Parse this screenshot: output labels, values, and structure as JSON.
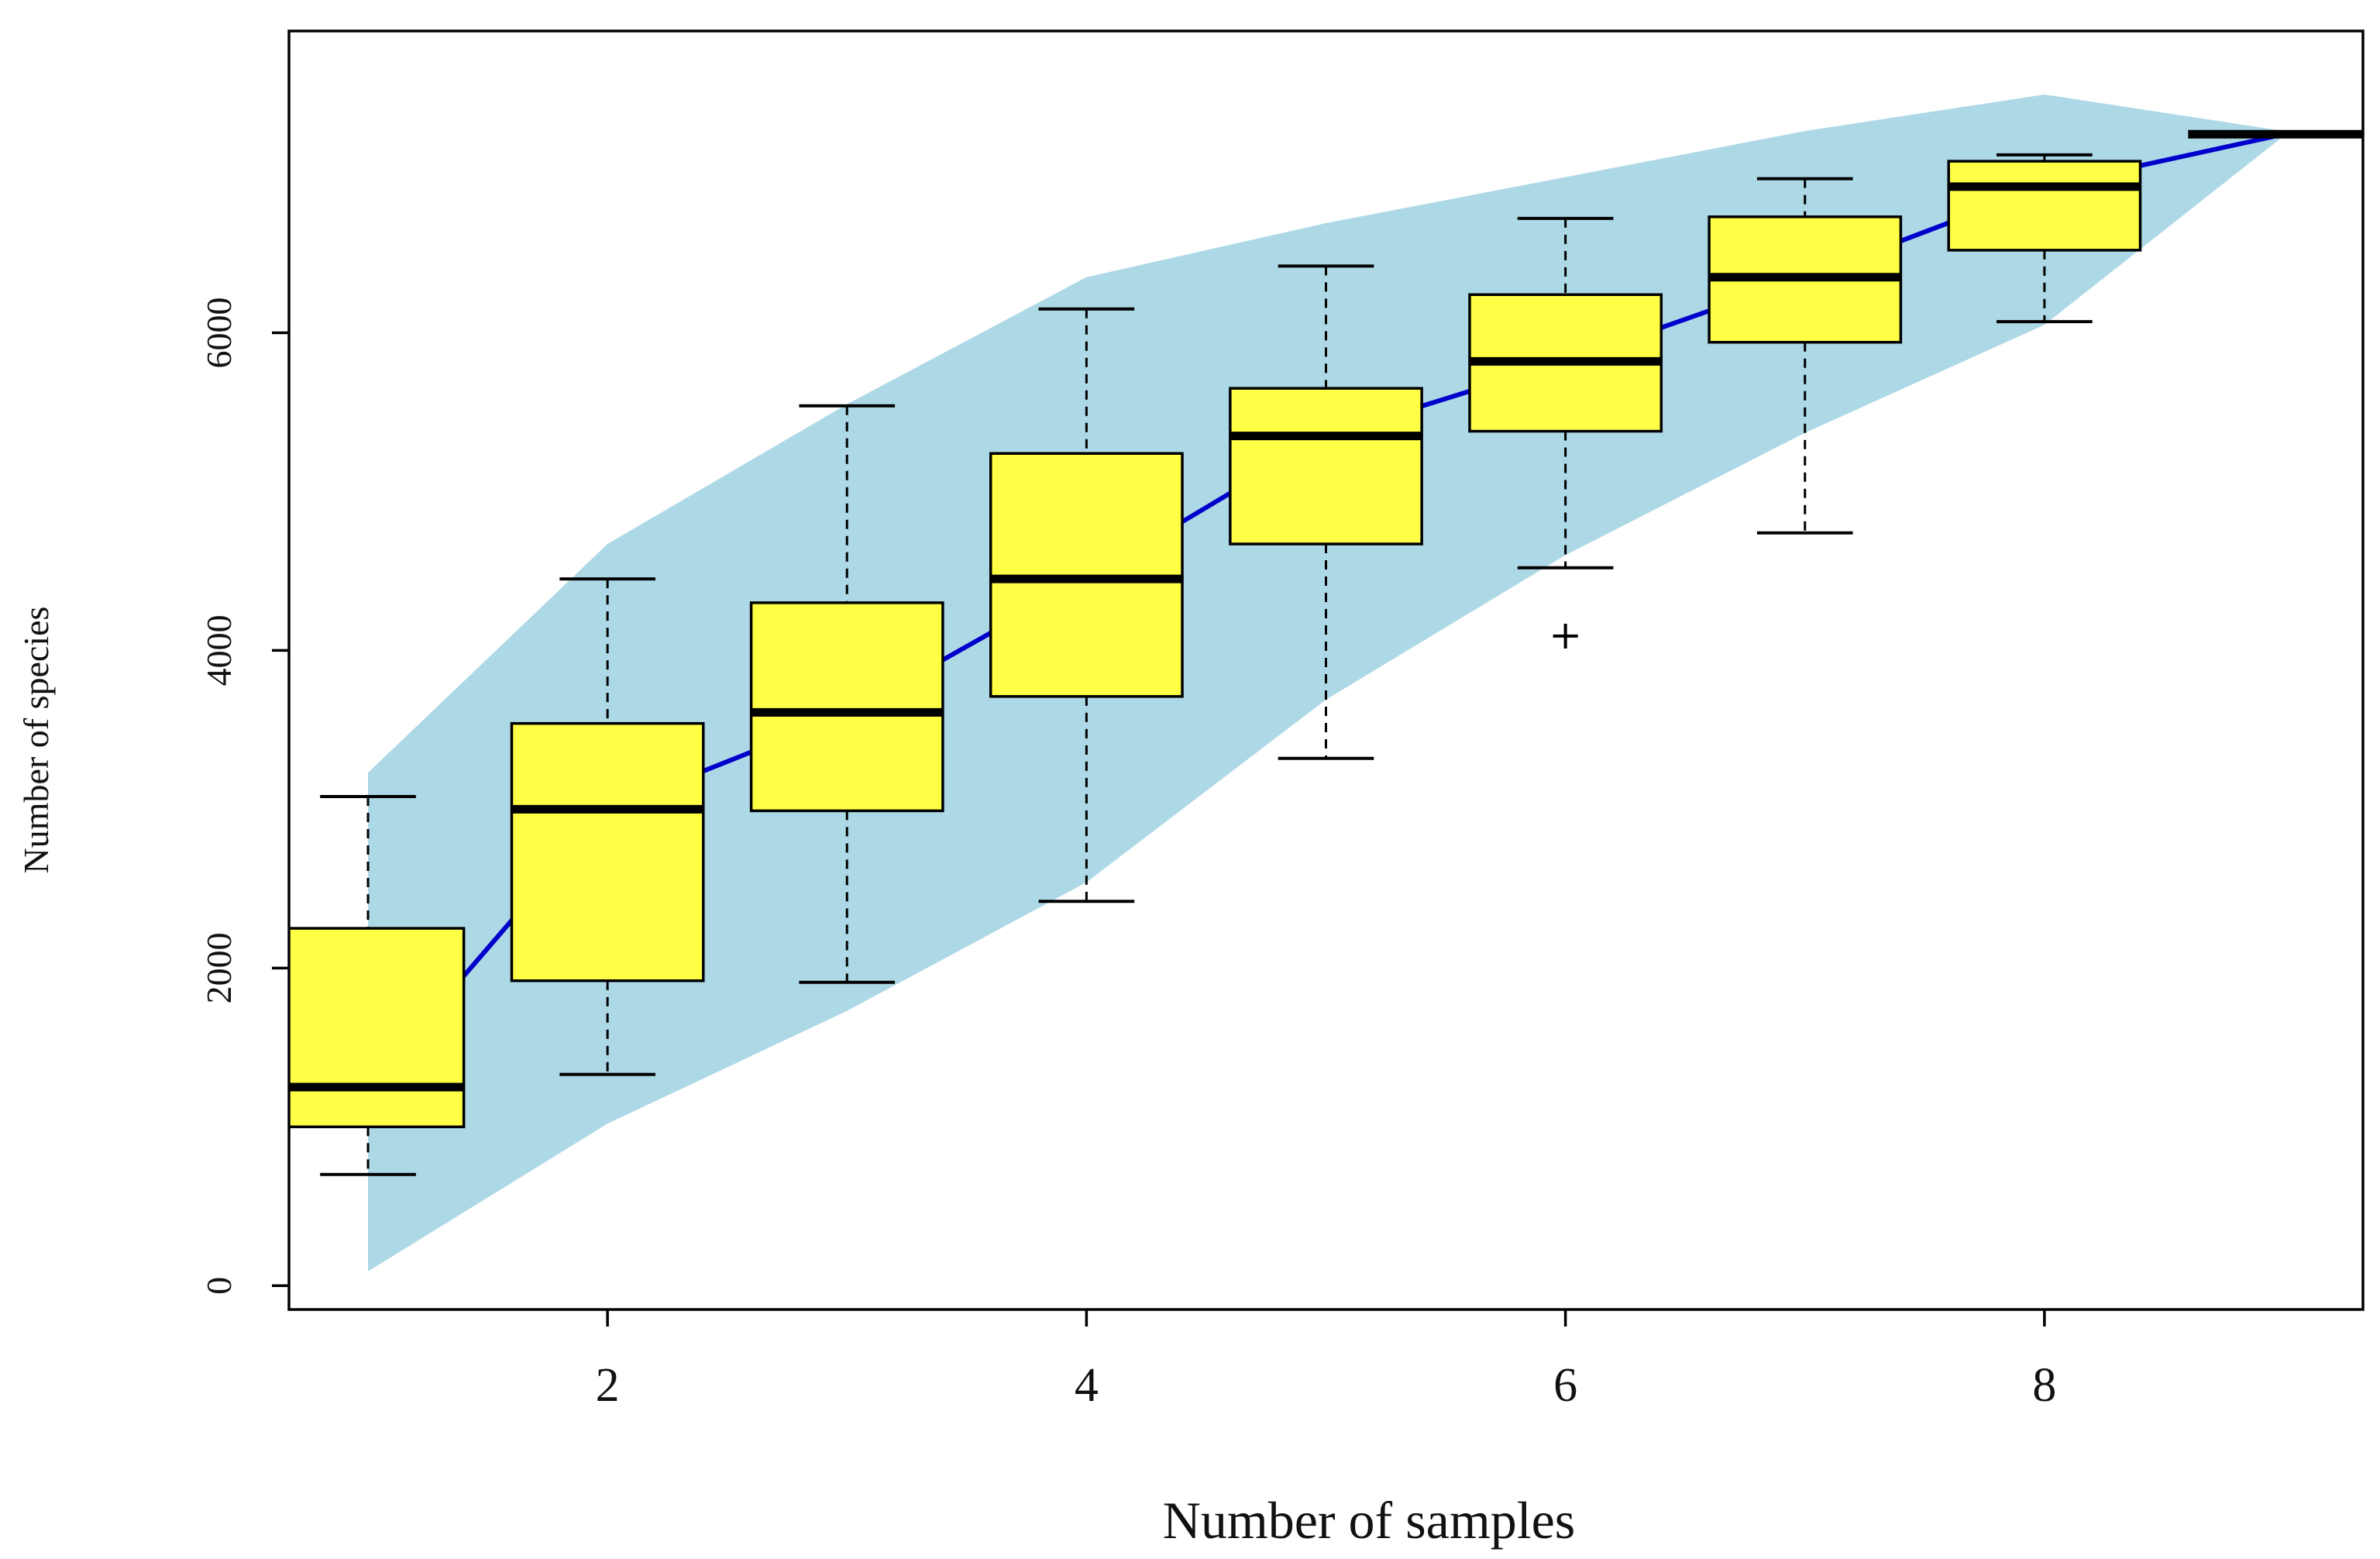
{
  "chart_data": {
    "type": "box",
    "title": "",
    "xlabel": "Number of samples",
    "ylabel": "Number of species",
    "xlim": [
      0.67,
      9.33
    ],
    "ylim": [
      -150,
      7900
    ],
    "xticks": [
      "2",
      "4",
      "6",
      "8"
    ],
    "yticks": [
      "0",
      "2000",
      "4000",
      "6000"
    ],
    "colors": {
      "band": "#add8e6",
      "box": "#ffff45",
      "line": "#0000cc",
      "stroke": "#000000"
    },
    "accumulation_curve": {
      "x": [
        1,
        2,
        3,
        4,
        5,
        6,
        7,
        8,
        9
      ],
      "y": [
        1250,
        3000,
        3600,
        4450,
        5350,
        5820,
        6350,
        6920,
        7250
      ]
    },
    "confidence_band": {
      "x": [
        1,
        2,
        3,
        4,
        5,
        6,
        7,
        8,
        9
      ],
      "upper": [
        3230,
        4670,
        5550,
        6350,
        6690,
        6980,
        7270,
        7500,
        7270
      ],
      "lower": [
        90,
        1020,
        1730,
        2540,
        3690,
        4600,
        5370,
        6050,
        7240
      ]
    },
    "boxes": [
      {
        "x": 1,
        "whisker_low": 700,
        "q1": 1000,
        "median": 1250,
        "q3": 2250,
        "whisker_high": 3080
      },
      {
        "x": 2,
        "whisker_low": 1330,
        "q1": 1920,
        "median": 3000,
        "q3": 3540,
        "whisker_high": 4450
      },
      {
        "x": 3,
        "whisker_low": 1910,
        "q1": 2990,
        "median": 3610,
        "q3": 4300,
        "whisker_high": 5540
      },
      {
        "x": 4,
        "whisker_low": 2420,
        "q1": 3710,
        "median": 4450,
        "q3": 5240,
        "whisker_high": 6150
      },
      {
        "x": 5,
        "whisker_low": 3320,
        "q1": 4670,
        "median": 5350,
        "q3": 5650,
        "whisker_high": 6420
      },
      {
        "x": 6,
        "whisker_low": 4520,
        "q1": 5380,
        "median": 5820,
        "q3": 6240,
        "whisker_high": 6720
      },
      {
        "x": 7,
        "whisker_low": 4740,
        "q1": 5940,
        "median": 6350,
        "q3": 6730,
        "whisker_high": 6970
      },
      {
        "x": 8,
        "whisker_low": 6070,
        "q1": 6520,
        "median": 6920,
        "q3": 7080,
        "whisker_high": 7120
      },
      {
        "x": 9,
        "whisker_low": 7250,
        "q1": 7250,
        "median": 7250,
        "q3": 7250,
        "whisker_high": 7250
      }
    ],
    "outliers": [
      {
        "x": 6,
        "y": 4090
      }
    ]
  }
}
